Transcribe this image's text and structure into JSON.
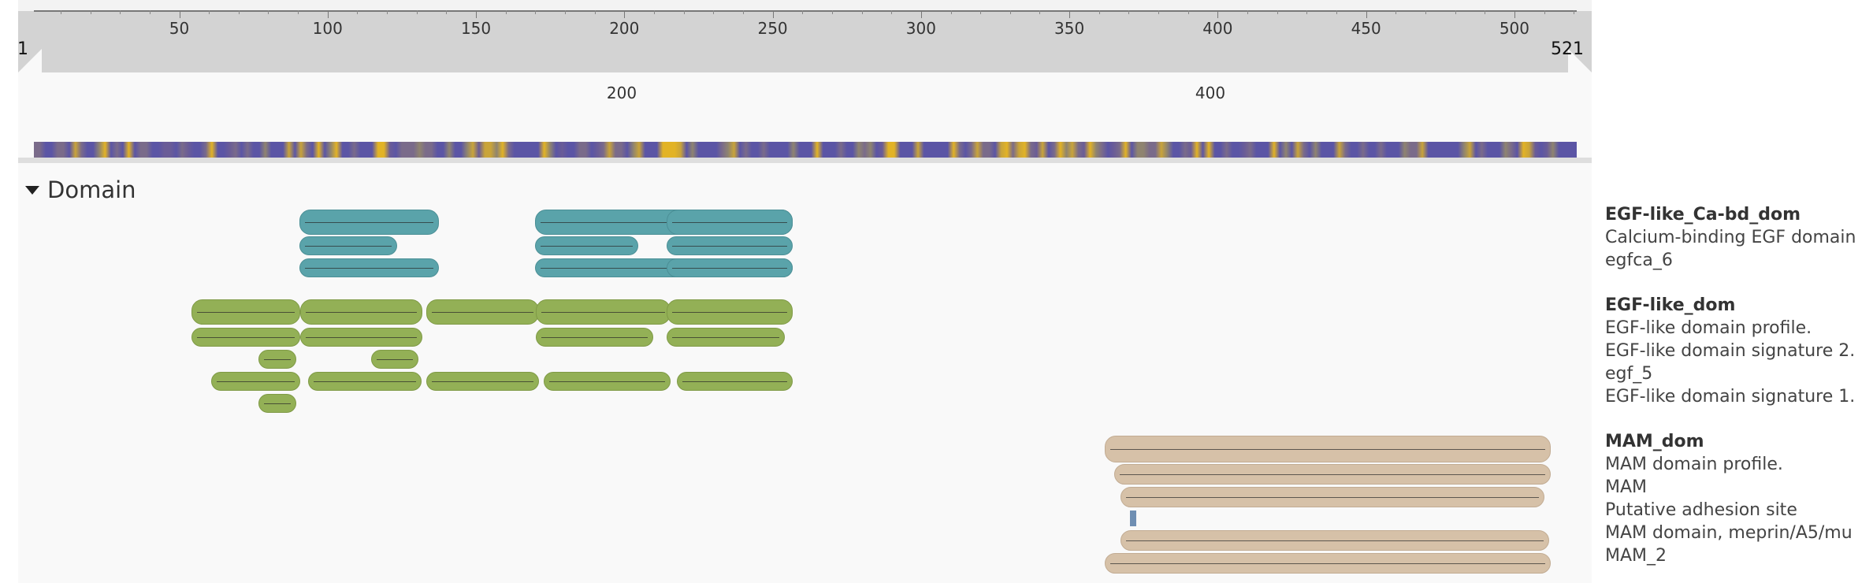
{
  "ruler": {
    "start": "1",
    "end": "521",
    "ticks": [
      "50",
      "100",
      "150",
      "200",
      "250",
      "300",
      "350",
      "400",
      "450",
      "500"
    ],
    "sub_ticks": [
      "200",
      "400"
    ]
  },
  "heatmap": {
    "colors": [
      "#5b55a5",
      "#7a6b8a",
      "#e2b326",
      "#8f8470",
      "#c9a43a",
      "#6a5c97"
    ]
  },
  "section": {
    "title": "Domain"
  },
  "legend": {
    "groups": [
      {
        "title": "EGF-like_Ca-bd_dom",
        "entries": [
          "Calcium-binding EGF domain",
          "egfca_6"
        ]
      },
      {
        "title": "EGF-like_dom",
        "entries": [
          "EGF-like domain profile.",
          "EGF-like domain signature 2.",
          "egf_5",
          "EGF-like domain signature 1."
        ]
      },
      {
        "title": "MAM_dom",
        "entries": [
          "MAM domain profile.",
          "MAM",
          "Putative adhesion site",
          "MAM domain, meprin/A5/mu",
          "MAM_2"
        ]
      }
    ]
  },
  "colors": {
    "egfca": "#5aa3aa",
    "egf": "#93b056",
    "mam": "#d6c1a8",
    "site": "#6f8fb3"
  }
}
